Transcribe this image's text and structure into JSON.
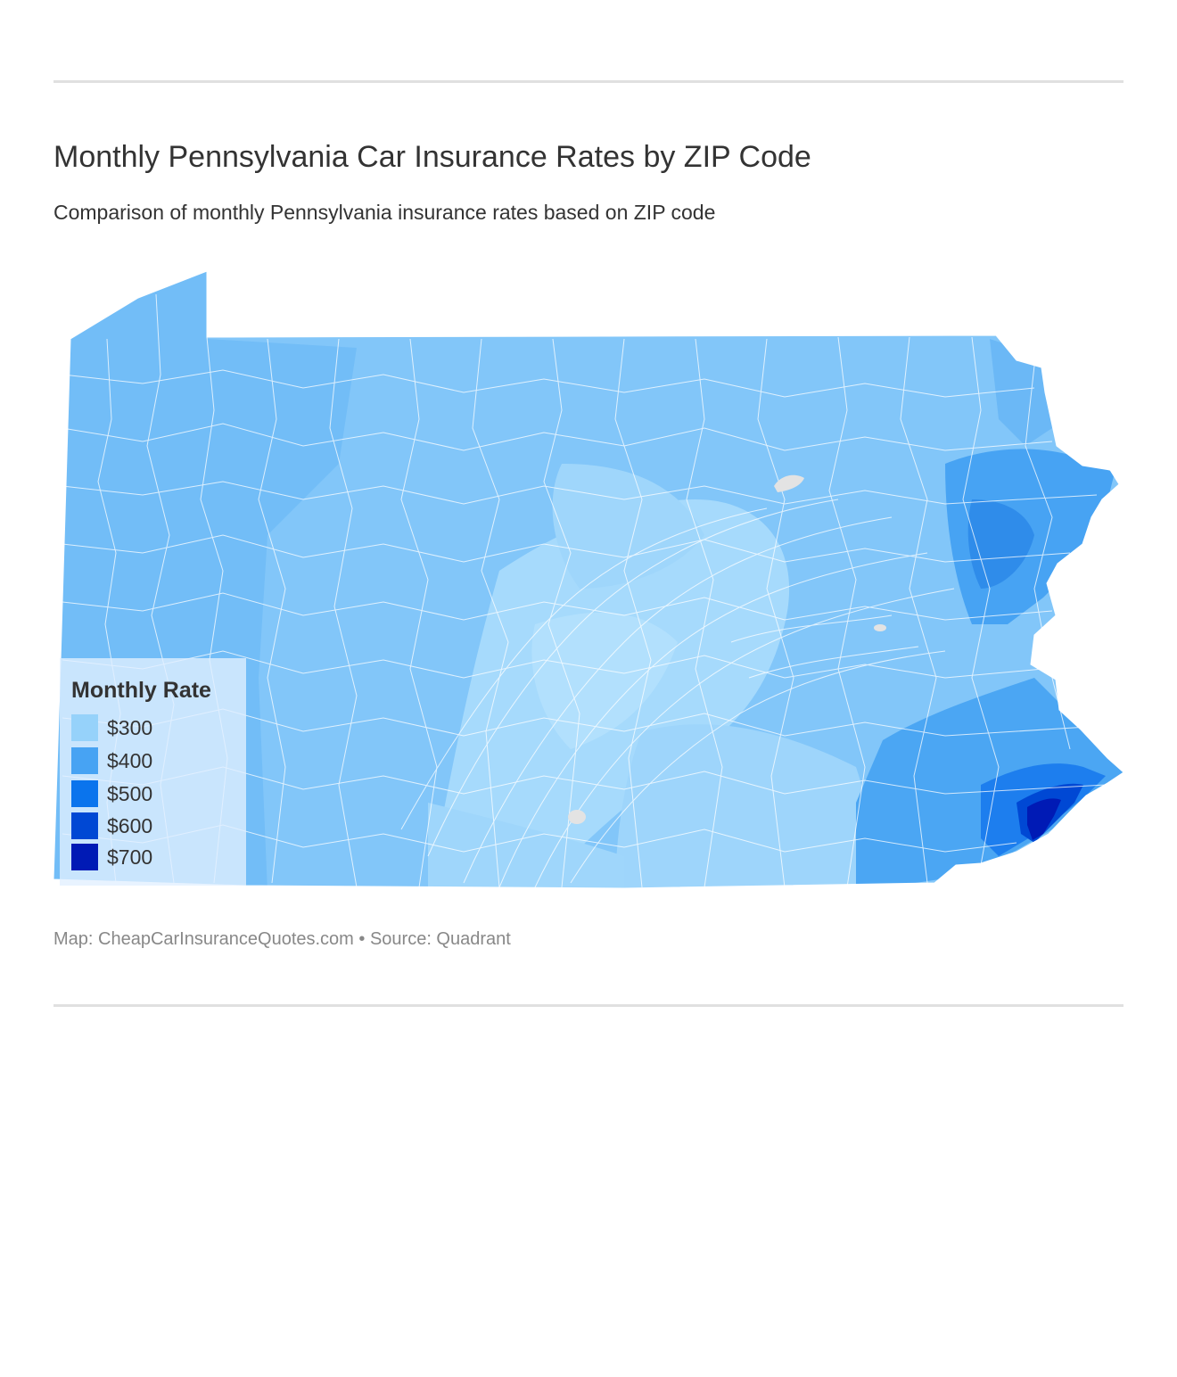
{
  "header": {
    "title": "Monthly Pennsylvania Car Insurance Rates by ZIP Code",
    "subtitle": "Comparison of monthly Pennsylvania insurance rates based on ZIP code"
  },
  "map": {
    "region": "Pennsylvania",
    "base_color": "#82c6f9",
    "boundary_color": "#ffffff",
    "no_data_color": "#e3e3e3"
  },
  "legend": {
    "title": "Monthly Rate",
    "items": [
      {
        "label": "$300",
        "color": "#96d2fa"
      },
      {
        "label": "$400",
        "color": "#47a3f3"
      },
      {
        "label": "$500",
        "color": "#0a74ed"
      },
      {
        "label": "$600",
        "color": "#0048d4"
      },
      {
        "label": "$700",
        "color": "#001ab5"
      }
    ]
  },
  "footer": {
    "credit": "Map: CheapCarInsuranceQuotes.com • Source: Quadrant"
  }
}
